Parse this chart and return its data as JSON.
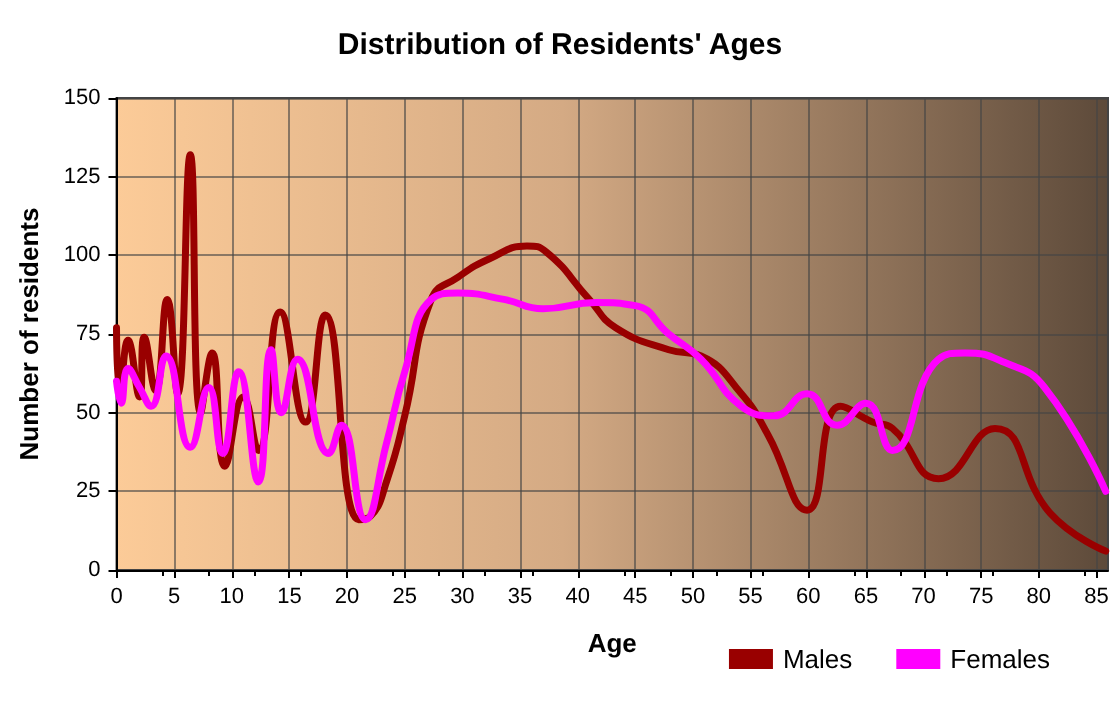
{
  "chart_data": {
    "type": "line",
    "title": "Distribution of Residents' Ages",
    "xlabel": "Age",
    "ylabel": "Number of residents",
    "xlim": [
      0,
      86
    ],
    "xticks": [
      0,
      5,
      10,
      15,
      20,
      25,
      30,
      35,
      40,
      45,
      50,
      55,
      60,
      65,
      70,
      75,
      80,
      85
    ],
    "ylim": [
      0,
      150
    ],
    "yticks": [
      0,
      25,
      50,
      75,
      100,
      125,
      150
    ],
    "grid": true,
    "legend": "bottom right",
    "marker": "none",
    "line_style": "solid",
    "series": [
      {
        "name": "Males",
        "color": "#990000",
        "x": [
          0,
          0.3,
          1,
          2,
          2.4,
          3.4,
          4.4,
          5.3,
          6.4,
          7.3,
          8.3,
          9.4,
          11,
          12.3,
          14.2,
          16.4,
          18.1,
          21,
          22,
          23.5,
          25,
          27.3,
          29.6,
          32.4,
          35.6,
          37.3,
          41,
          43.3,
          47.9,
          50.7,
          54.2,
          56.5,
          59.9,
          62.8,
          65.6,
          67.3,
          71.3,
          76.2,
          81,
          85.8
        ],
        "values": [
          77,
          56,
          73,
          55,
          74,
          57,
          86,
          56,
          132,
          50,
          69,
          33,
          55,
          38,
          82,
          47,
          81,
          16,
          17,
          29,
          49,
          86,
          93,
          99,
          103,
          101,
          86,
          77,
          70,
          68,
          56,
          43,
          19,
          52,
          47,
          45,
          29,
          45,
          18,
          6
        ]
      },
      {
        "name": "Females",
        "color": "#ff00ff",
        "x": [
          0,
          0.4,
          1,
          2,
          3,
          4.3,
          6.4,
          8,
          9.2,
          10.6,
          12.3,
          13.4,
          14.3,
          15.7,
          18.4,
          19.5,
          21.6,
          23.4,
          25,
          27.3,
          29.6,
          33.6,
          37,
          41.6,
          45,
          47.9,
          50.7,
          54.2,
          57,
          59.9,
          62.5,
          65,
          67.3,
          71.3,
          73.6,
          77,
          80.5,
          85.8
        ],
        "values": [
          60,
          53,
          64,
          58,
          52,
          68,
          39,
          58,
          37,
          63,
          28,
          70,
          50,
          67,
          37,
          46,
          16,
          40,
          63,
          86,
          88,
          86,
          83,
          85,
          84,
          75,
          67,
          52,
          49,
          56,
          46,
          53,
          38,
          67,
          69,
          66,
          58,
          25
        ]
      }
    ]
  }
}
